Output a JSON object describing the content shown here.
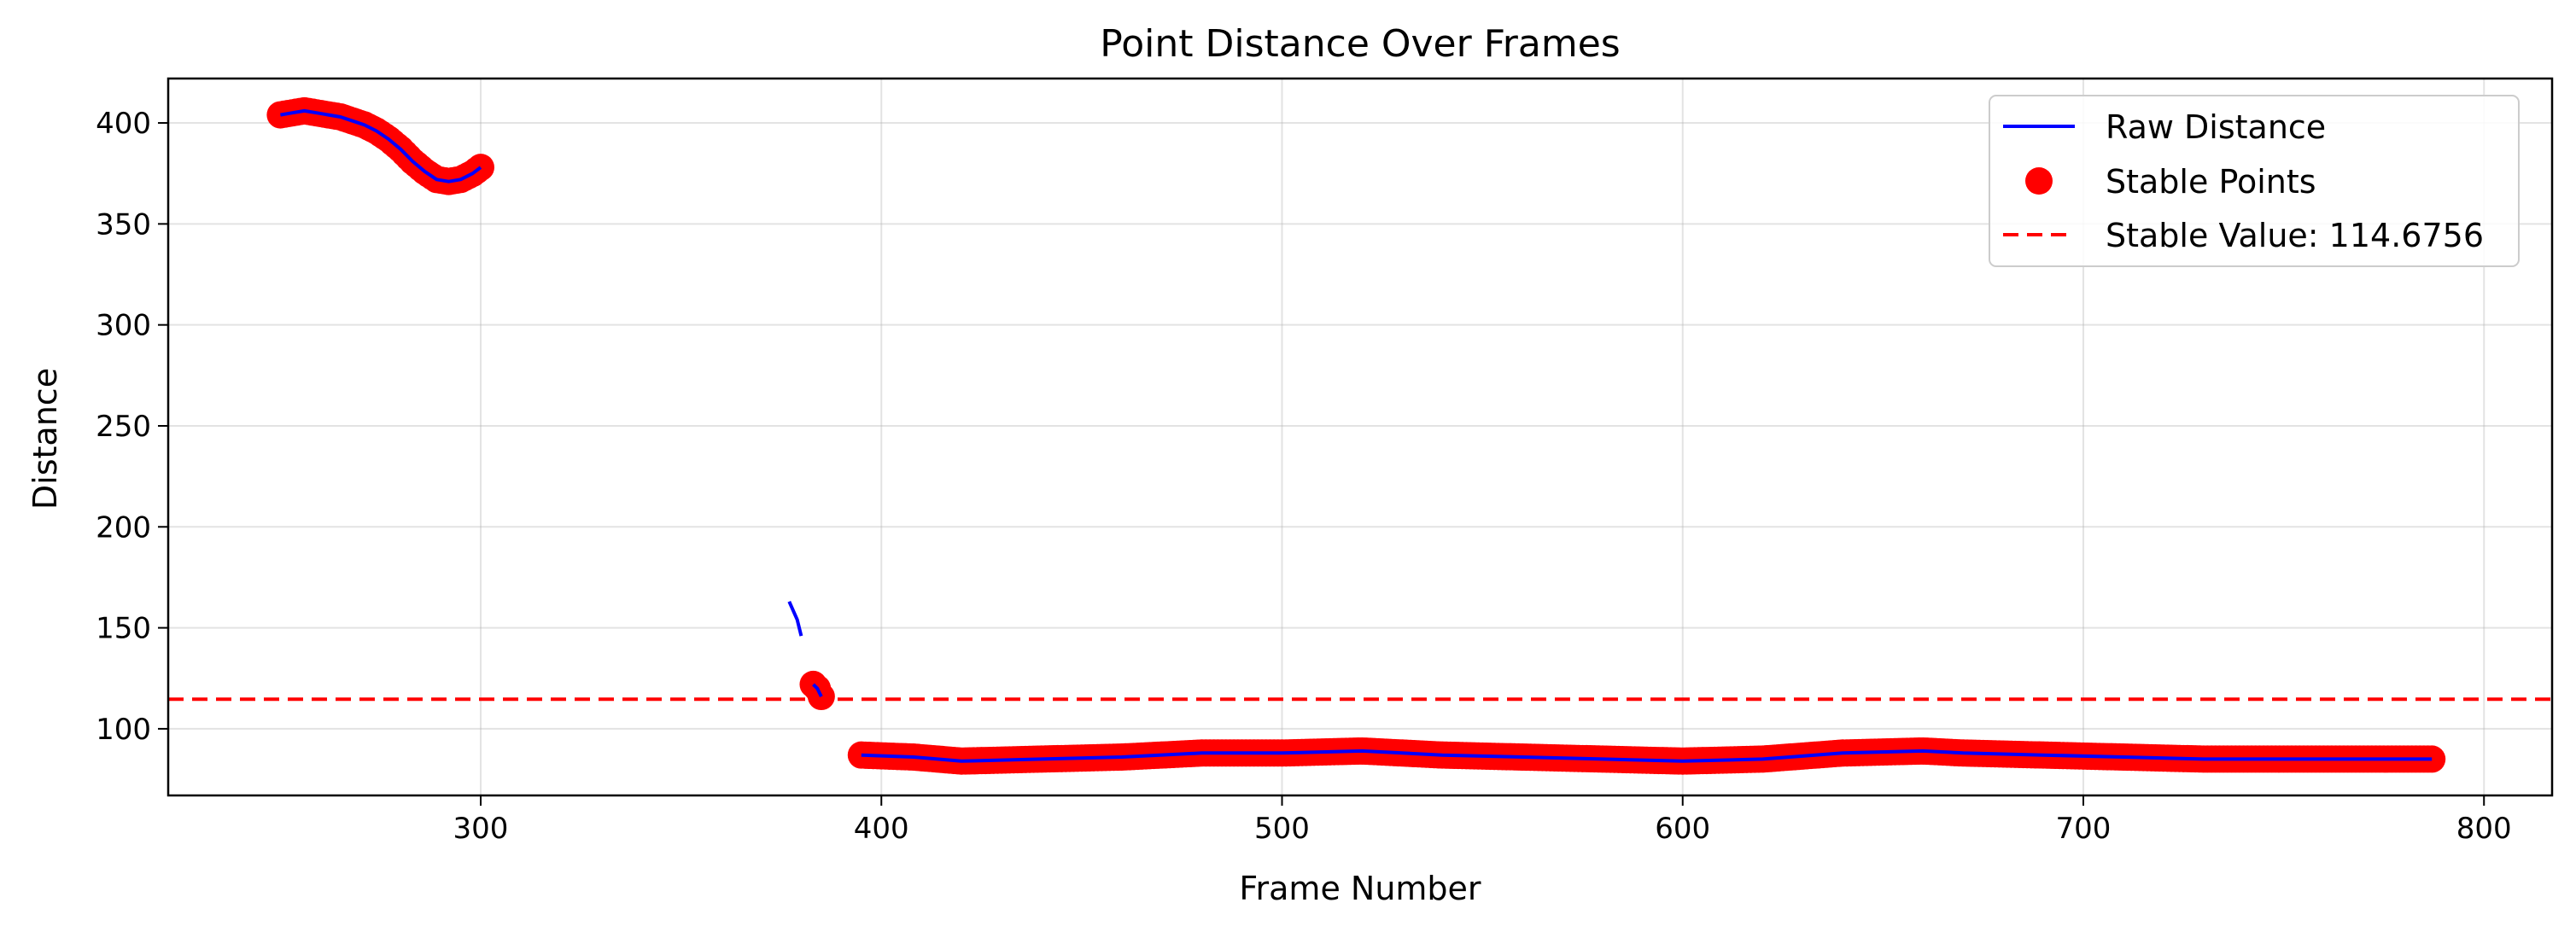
{
  "chart_data": {
    "type": "line",
    "title": "Point Distance Over Frames",
    "xlabel": "Frame Number",
    "ylabel": "Distance",
    "xlim": [
      222,
      817
    ],
    "ylim": [
      67,
      422
    ],
    "xticks": [
      300,
      400,
      500,
      600,
      700,
      800
    ],
    "yticks": [
      100,
      150,
      200,
      250,
      300,
      350,
      400
    ],
    "grid": true,
    "legend_position": "top-right",
    "legend": [
      "Raw Distance",
      "Stable Points",
      "Stable Value: 114.6756"
    ],
    "colors": {
      "raw": "#0000ff",
      "stable_points": "#ff0000",
      "stable_line": "#ff0000"
    },
    "series": [
      {
        "name": "Raw Distance",
        "kind": "line",
        "segments": [
          [
            [
              250,
              404
            ],
            [
              253,
              405
            ],
            [
              256,
              406
            ],
            [
              259,
              405
            ],
            [
              262,
              404
            ],
            [
              265,
              403
            ],
            [
              268,
              401
            ],
            [
              271,
              399
            ],
            [
              274,
              396
            ],
            [
              277,
              392
            ],
            [
              280,
              387
            ],
            [
              283,
              381
            ],
            [
              286,
              376
            ],
            [
              289,
              372
            ],
            [
              292,
              371
            ],
            [
              295,
              372
            ],
            [
              298,
              375
            ],
            [
              300,
              378
            ]
          ],
          [
            [
              377,
              163
            ],
            [
              379,
              154
            ],
            [
              380,
              146
            ]
          ],
          [
            [
              383,
              122
            ],
            [
              384,
              120
            ],
            [
              385,
              116
            ]
          ],
          [
            [
              395,
              87
            ],
            [
              408,
              86
            ],
            [
              420,
              84
            ],
            [
              440,
              85
            ],
            [
              460,
              86
            ],
            [
              480,
              88
            ],
            [
              500,
              88
            ],
            [
              520,
              89
            ],
            [
              540,
              87
            ],
            [
              560,
              86
            ],
            [
              580,
              85
            ],
            [
              600,
              84
            ],
            [
              620,
              85
            ],
            [
              640,
              88
            ],
            [
              660,
              89
            ],
            [
              670,
              88
            ],
            [
              690,
              87
            ],
            [
              710,
              86
            ],
            [
              730,
              85
            ],
            [
              750,
              85
            ],
            [
              770,
              85
            ],
            [
              787,
              85
            ]
          ]
        ]
      },
      {
        "name": "Stable Points",
        "kind": "scatter",
        "ranges": [
          [
            250,
            300
          ],
          [
            383,
            385
          ],
          [
            395,
            787
          ]
        ]
      },
      {
        "name": "Stable Value: 114.6756",
        "kind": "hline",
        "value": 114.6756
      }
    ]
  }
}
